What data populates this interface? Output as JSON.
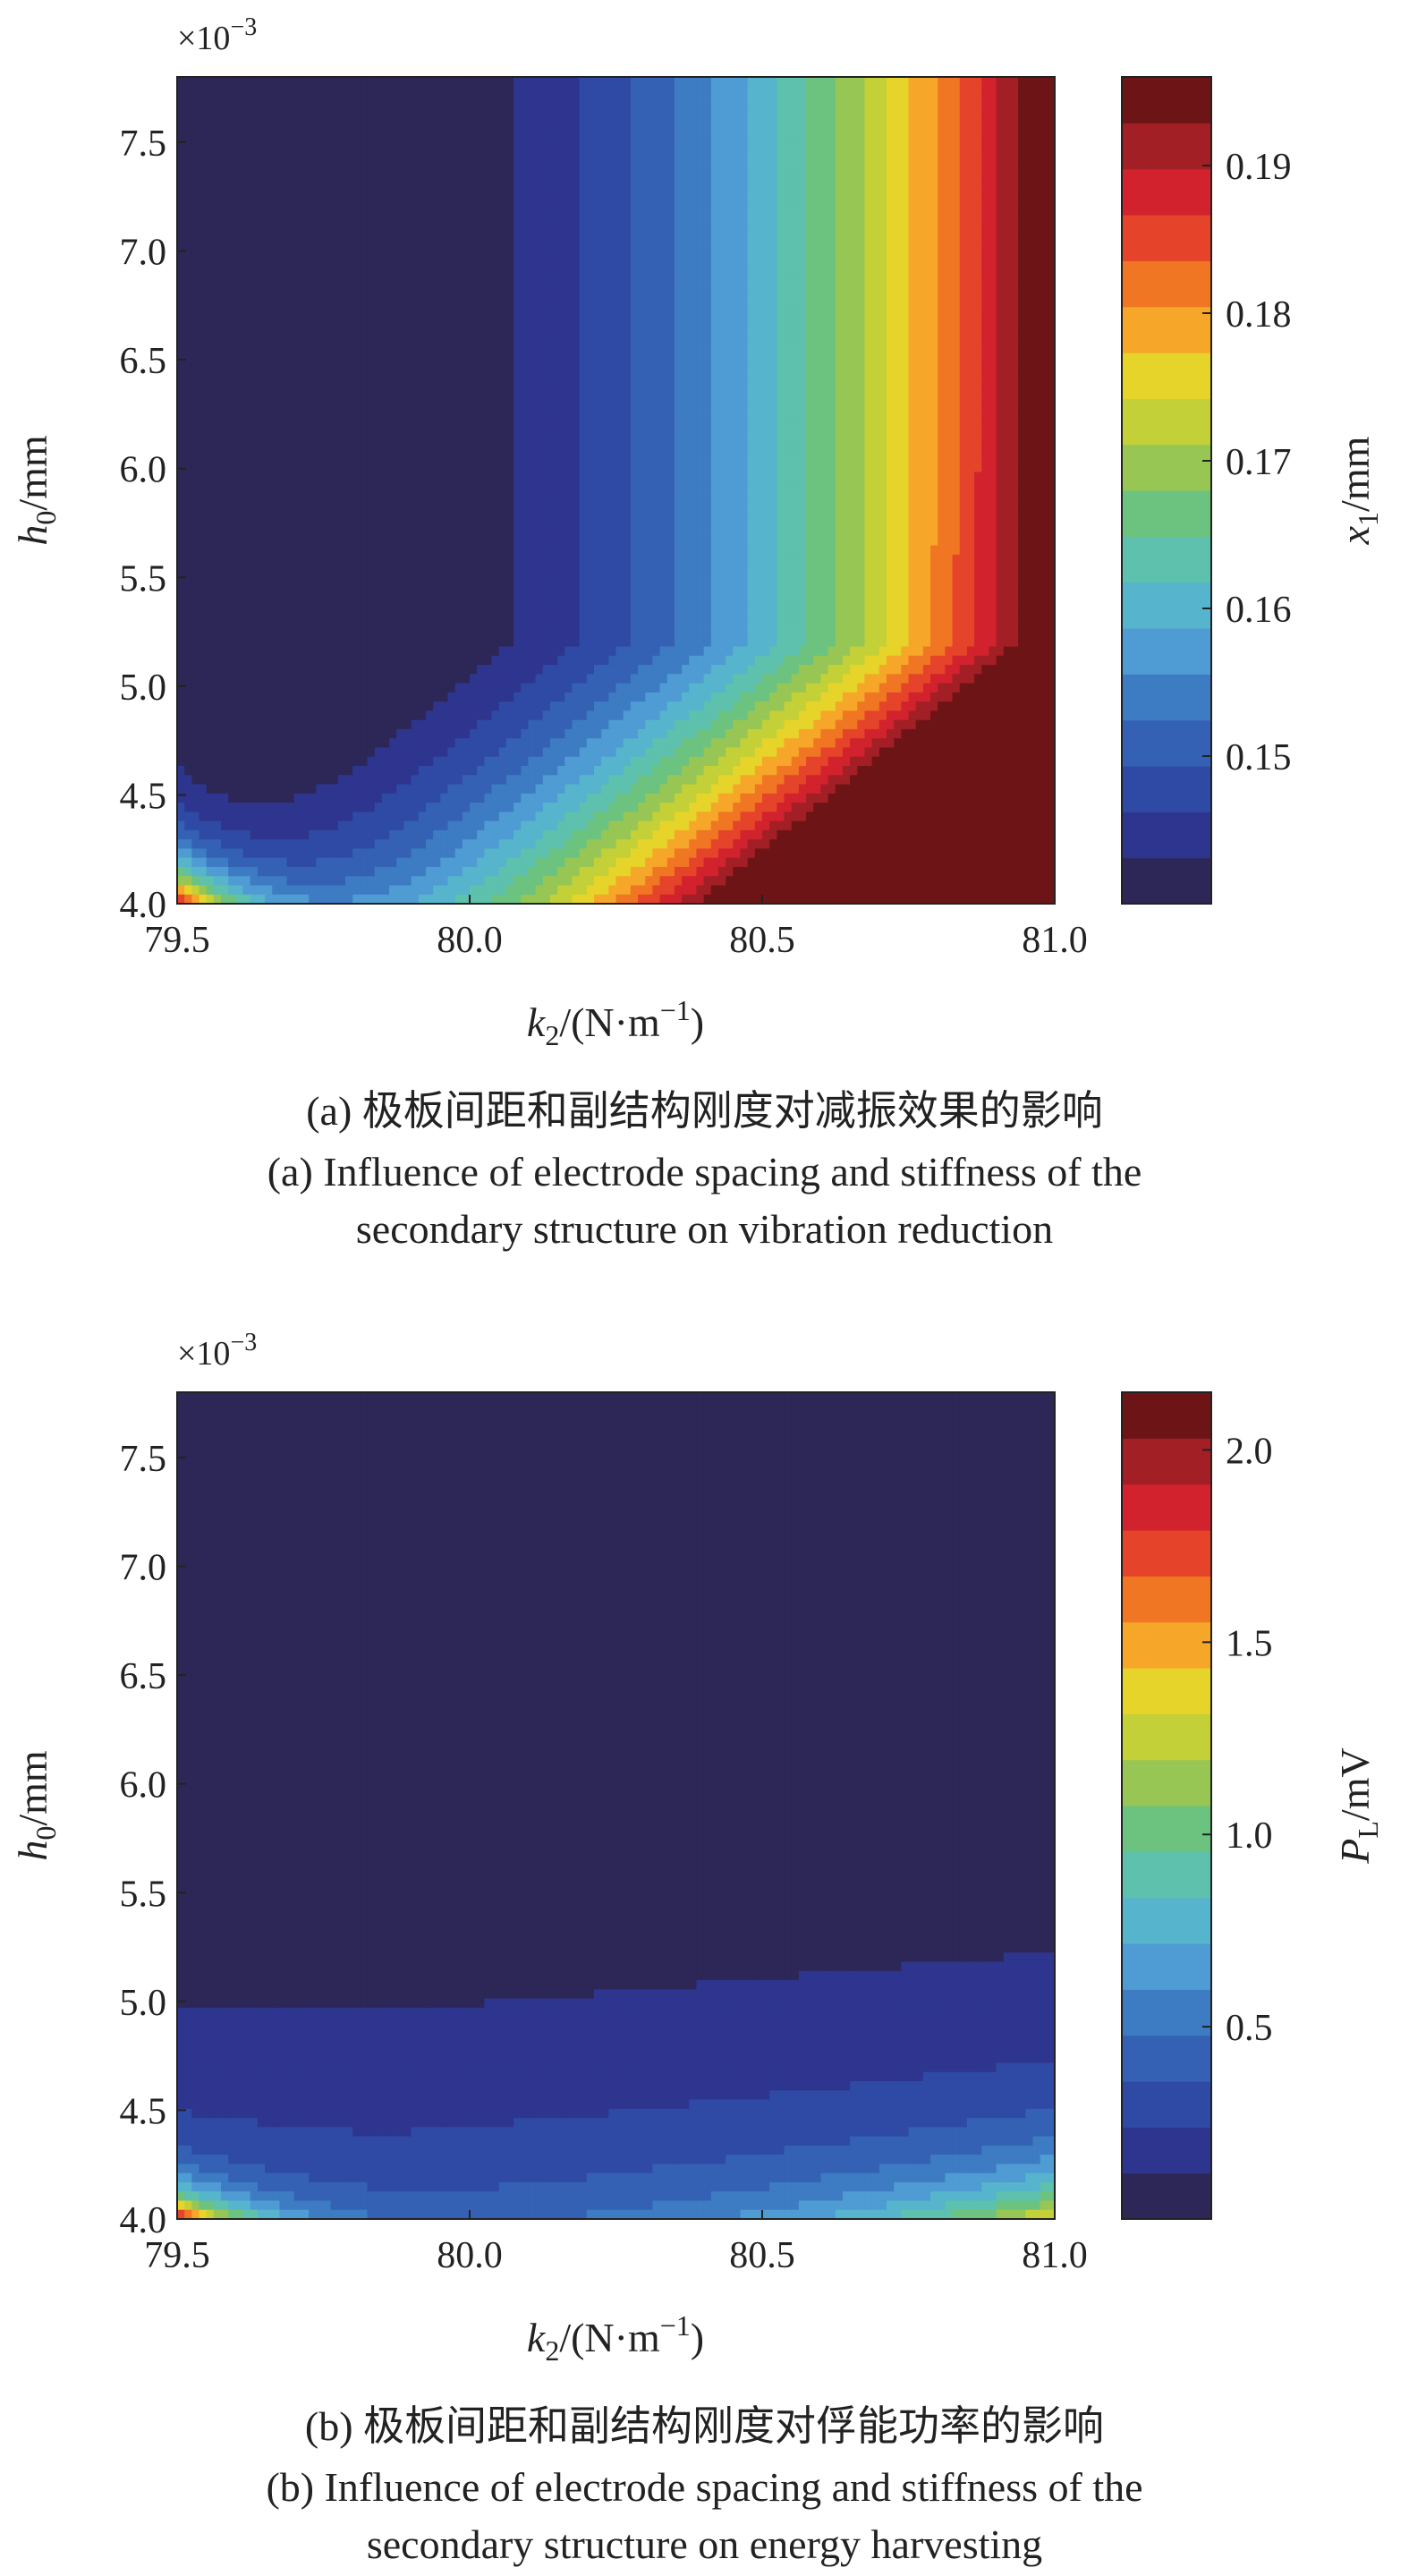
{
  "colors": {
    "colormap": [
      "#2d2757",
      "#2e358f",
      "#2f4aa4",
      "#3461b3",
      "#3d7bc2",
      "#4f9bd3",
      "#56b4cc",
      "#5dc1ad",
      "#6cc27f",
      "#97c655",
      "#c3d037",
      "#e6d42a",
      "#f6a628",
      "#f07623",
      "#e5442a",
      "#d1222d",
      "#a31f26",
      "#6d1516"
    ]
  },
  "chart_data": [
    {
      "type": "heatmap",
      "xlabel": {
        "var": "k",
        "sub": "2",
        "unit": "/(N·m",
        "sup": "−1",
        "close": ")"
      },
      "ylabel": {
        "var": "h",
        "sub": "0",
        "unit": "/mm"
      },
      "y_multiplier": "×10",
      "y_multiplier_exp": "−3",
      "x_ticks": [
        "79.5",
        "80.0",
        "80.5",
        "81.0"
      ],
      "y_ticks": [
        "4.0",
        "4.5",
        "5.0",
        "5.5",
        "6.0",
        "6.5",
        "7.0",
        "7.5"
      ],
      "xlim": [
        79.5,
        81.0
      ],
      "ylim": [
        4.0,
        7.8
      ],
      "colorbar": {
        "label_var": "x",
        "label_sub": "1",
        "label_unit": "/mm",
        "ticks": [
          "0.15",
          "0.16",
          "0.17",
          "0.18",
          "0.19"
        ],
        "tick_values": [
          0.15,
          0.16,
          0.17,
          0.18,
          0.19
        ],
        "range": [
          0.14,
          0.196
        ]
      },
      "caption_cn": "(a) 极板间距和副结构刚度对减振效果的影响",
      "caption_en_line1": "(a) Influence of electrode spacing and stiffness of the",
      "caption_en_line2": "secondary structure on vibration reduction"
    },
    {
      "type": "heatmap",
      "xlabel": {
        "var": "k",
        "sub": "2",
        "unit": "/(N·m",
        "sup": "−1",
        "close": ")"
      },
      "ylabel": {
        "var": "h",
        "sub": "0",
        "unit": "/mm"
      },
      "y_multiplier": "×10",
      "y_multiplier_exp": "−3",
      "x_ticks": [
        "79.5",
        "80.0",
        "80.5",
        "81.0"
      ],
      "y_ticks": [
        "4.0",
        "4.5",
        "5.0",
        "5.5",
        "6.0",
        "6.5",
        "7.0",
        "7.5"
      ],
      "xlim": [
        79.5,
        81.0
      ],
      "ylim": [
        4.0,
        7.8
      ],
      "colorbar": {
        "label_var": "P",
        "label_sub": "L",
        "label_unit": "/mV",
        "ticks": [
          "0.5",
          "1.0",
          "1.5",
          "2.0"
        ],
        "tick_values": [
          0.5,
          1.0,
          1.5,
          2.0
        ],
        "range": [
          0.0,
          2.15
        ]
      },
      "caption_cn": "(b) 极板间距和副结构刚度对俘能功率的影响",
      "caption_en_line1": "(b) Influence of electrode spacing and stiffness of the",
      "caption_en_line2": "secondary structure on energy harvesting"
    }
  ]
}
